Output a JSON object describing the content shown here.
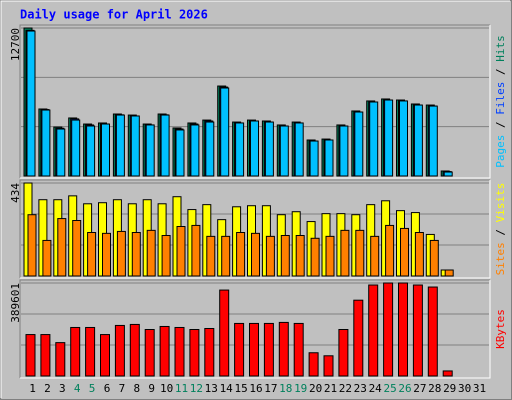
{
  "chart_data": [
    {
      "type": "bar",
      "title": "Daily usage for April 2026",
      "ylim": [
        0,
        12700
      ],
      "yticks": [
        12700
      ],
      "legend_separator": " / ",
      "series": [
        {
          "name": "Hits",
          "color": "#00805c",
          "values": [
            12700,
            5750,
            4200,
            4980,
            4460,
            4550,
            5320,
            5230,
            4460,
            5320,
            4120,
            4550,
            4800,
            7720,
            4630,
            4800,
            4720,
            4380,
            4630,
            3090,
            3170,
            4380,
            5580,
            6440,
            6610,
            6520,
            6180,
            6090,
            430,
            null,
            null
          ]
        },
        {
          "name": "Files",
          "color": "#0040ff",
          "values": [
            12500,
            5700,
            4100,
            4900,
            4380,
            4460,
            5250,
            5150,
            4380,
            5250,
            4030,
            4460,
            4720,
            7630,
            4550,
            4720,
            4630,
            4290,
            4550,
            3000,
            3090,
            4290,
            5490,
            6350,
            6520,
            6440,
            6090,
            6000,
            380,
            null,
            null
          ]
        },
        {
          "name": "Pages",
          "color": "#00c0ff",
          "values": [
            12440,
            5660,
            4030,
            4800,
            4290,
            4460,
            5230,
            5150,
            4380,
            5230,
            3950,
            4380,
            4630,
            7550,
            4550,
            4720,
            4630,
            4290,
            4550,
            3000,
            3090,
            4290,
            5490,
            6350,
            6520,
            6440,
            6090,
            6000,
            340,
            null,
            null
          ]
        }
      ]
    },
    {
      "type": "bar",
      "ylim": [
        0,
        434
      ],
      "yticks": [
        434
      ],
      "legend_separator": " / ",
      "series": [
        {
          "name": "Visits",
          "color": "#ffff00",
          "values": [
            434,
            356,
            356,
            374,
            337,
            342,
            356,
            337,
            356,
            337,
            370,
            310,
            333,
            263,
            323,
            328,
            328,
            286,
            300,
            254,
            291,
            291,
            286,
            333,
            351,
            305,
            296,
            194,
            28,
            null,
            null
          ]
        },
        {
          "name": "Sites",
          "color": "#ff8000",
          "values": [
            286,
            166,
            268,
            259,
            203,
            199,
            208,
            203,
            213,
            189,
            231,
            236,
            185,
            185,
            203,
            199,
            185,
            189,
            189,
            176,
            185,
            213,
            213,
            185,
            236,
            222,
            203,
            166,
            28,
            null,
            null
          ]
        }
      ]
    },
    {
      "type": "bar",
      "ylim": [
        0,
        389601
      ],
      "yticks": [
        389601
      ],
      "categories": [
        "1",
        "2",
        "3",
        "4",
        "5",
        "6",
        "7",
        "8",
        "9",
        "10",
        "11",
        "12",
        "13",
        "14",
        "15",
        "16",
        "17",
        "18",
        "19",
        "20",
        "21",
        "22",
        "23",
        "24",
        "25",
        "26",
        "27",
        "28",
        "29",
        "30",
        "31"
      ],
      "highlight_categories": [
        3,
        4,
        10,
        11,
        17,
        18,
        24,
        25
      ],
      "highlight_color": "#00805c",
      "label_color": "#000000",
      "series": [
        {
          "name": "KBytes",
          "color": "#ff0000",
          "values": [
            173600,
            173600,
            139800,
            203300,
            203300,
            173600,
            211800,
            216000,
            194800,
            207500,
            203300,
            194800,
            199000,
            360000,
            220200,
            220200,
            220200,
            224500,
            220200,
            97400,
            84700,
            194800,
            317600,
            381150,
            389601,
            389601,
            381150,
            372700,
            21200,
            null,
            null
          ]
        }
      ]
    }
  ]
}
